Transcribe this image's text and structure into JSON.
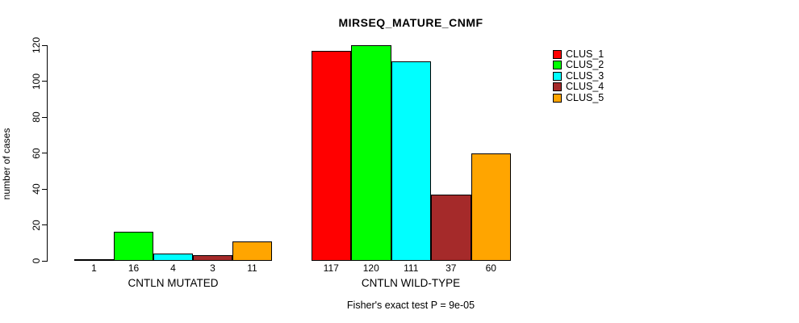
{
  "title": "MIRSEQ_MATURE_CNMF",
  "chart_data": {
    "type": "bar",
    "title": "MIRSEQ_MATURE_CNMF",
    "xlabel": "",
    "ylabel": "number of cases",
    "ylim": [
      0,
      120
    ],
    "yticks": [
      0,
      20,
      40,
      60,
      80,
      100,
      120
    ],
    "grid": false,
    "legend_position": "right",
    "legend": [
      "CLUS_1",
      "CLUS_2",
      "CLUS_3",
      "CLUS_4",
      "CLUS_5"
    ],
    "series_colors": [
      "#FF0000",
      "#00FF00",
      "#00FFFF",
      "#A52A2A",
      "#FFA500"
    ],
    "groups": [
      {
        "label": "CNTLN MUTATED",
        "values": [
          1,
          16,
          4,
          3,
          11
        ]
      },
      {
        "label": "CNTLN WILD-TYPE",
        "values": [
          117,
          120,
          111,
          37,
          60
        ]
      }
    ],
    "bar_value_labels": [
      [
        "1",
        "16",
        "4",
        "3",
        "11"
      ],
      [
        "117",
        "120",
        "111",
        "37",
        "60"
      ]
    ],
    "annotation": "Fisher's exact test P = 9e-05"
  },
  "colors": {
    "background": "#FFFFFF",
    "axis": "#000000",
    "bar_border": "#000000",
    "text": "#000000"
  }
}
